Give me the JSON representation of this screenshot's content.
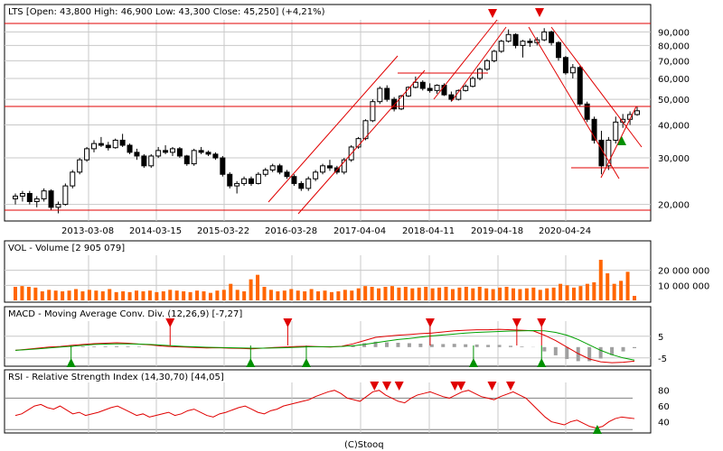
{
  "credit": "(C)Stooq",
  "colors": {
    "frame": "#000000",
    "grid": "#c8c8c8",
    "candle": "#000000",
    "trend": "#e00000",
    "volume": "#ff6600",
    "macd_line": "#e00000",
    "signal_line": "#00a000",
    "histogram": "#a0a0a0",
    "sell_marker": "#e00000",
    "buy_marker": "#009000",
    "rsi_line": "#e00000",
    "rsi_level": "#808080"
  },
  "chart_data": [
    {
      "type": "candlestick",
      "title": "LTS [Open: 43,800  High: 46,900  Low: 43,300  Close: 45,250] (+4,21%)",
      "scale": "log",
      "ylim": [
        18000,
        100000
      ],
      "y_ticks": [
        90000,
        80000,
        70000,
        60000,
        50000,
        40000,
        30000,
        20000
      ],
      "y_tick_labels": [
        "90,000",
        "80,000",
        "70,000",
        "60,000",
        "50,000",
        "40,000",
        "30,000",
        "20,000"
      ],
      "x_tick_labels": [
        "2013-03-08",
        "2014-03-15",
        "2015-03-22",
        "2016-03-28",
        "2017-04-04",
        "2018-04-11",
        "2019-04-18",
        "2020-04-24"
      ],
      "x_label_positions": [
        98,
        173,
        248,
        323,
        399,
        475,
        551,
        626
      ],
      "grid": true,
      "candles_approx": [
        [
          2012.2,
          21000,
          22000,
          20000,
          21500
        ],
        [
          2012.3,
          21500,
          22500,
          20500,
          22000
        ],
        [
          2012.4,
          22000,
          22500,
          20000,
          20500
        ],
        [
          2012.5,
          20500,
          21500,
          19500,
          21000
        ],
        [
          2012.6,
          21000,
          23000,
          20500,
          22500
        ],
        [
          2012.7,
          22500,
          22800,
          19000,
          19500
        ],
        [
          2012.8,
          19500,
          20500,
          18500,
          20000
        ],
        [
          2012.9,
          20000,
          24000,
          19800,
          23500
        ],
        [
          2013.0,
          23500,
          27000,
          23000,
          26500
        ],
        [
          2013.1,
          26500,
          30000,
          26000,
          29500
        ],
        [
          2013.2,
          29500,
          33000,
          29000,
          32500
        ],
        [
          2013.3,
          32500,
          35000,
          31500,
          34000
        ],
        [
          2013.4,
          34000,
          36000,
          33000,
          33500
        ],
        [
          2013.5,
          33500,
          34500,
          32000,
          32800
        ],
        [
          2013.6,
          32800,
          35500,
          32500,
          35000
        ],
        [
          2013.7,
          35000,
          37000,
          33000,
          33500
        ],
        [
          2013.8,
          33500,
          34000,
          31000,
          31500
        ],
        [
          2013.9,
          31500,
          32500,
          29500,
          30500
        ],
        [
          2014.0,
          30500,
          31000,
          27500,
          28000
        ],
        [
          2014.1,
          28000,
          31000,
          27500,
          30500
        ],
        [
          2014.2,
          30500,
          33000,
          30000,
          32000
        ],
        [
          2014.3,
          32000,
          33500,
          31000,
          31500
        ],
        [
          2014.4,
          31500,
          33000,
          30500,
          32500
        ],
        [
          2014.5,
          32500,
          33000,
          30000,
          30500
        ],
        [
          2014.6,
          30500,
          30800,
          28000,
          28500
        ],
        [
          2014.7,
          28500,
          32500,
          28000,
          32000
        ],
        [
          2014.8,
          32000,
          33000,
          31000,
          31500
        ],
        [
          2014.9,
          31500,
          32000,
          30500,
          31000
        ],
        [
          2015.0,
          31000,
          31500,
          29500,
          30000
        ],
        [
          2015.1,
          30000,
          30500,
          25500,
          26000
        ],
        [
          2015.2,
          26000,
          26500,
          23000,
          23500
        ],
        [
          2015.3,
          23500,
          24500,
          22000,
          24000
        ],
        [
          2015.4,
          24000,
          25500,
          23500,
          25000
        ],
        [
          2015.5,
          25000,
          25500,
          23500,
          24000
        ],
        [
          2015.6,
          24000,
          26500,
          23800,
          26000
        ],
        [
          2015.7,
          26000,
          27500,
          25500,
          27000
        ],
        [
          2015.8,
          27000,
          28500,
          26500,
          28000
        ],
        [
          2015.9,
          28000,
          28500,
          26000,
          26500
        ],
        [
          2016.0,
          26500,
          27000,
          25000,
          25500
        ],
        [
          2016.1,
          25500,
          26000,
          23500,
          24000
        ],
        [
          2016.2,
          24000,
          24500,
          22500,
          23000
        ],
        [
          2016.3,
          23000,
          25500,
          22500,
          25000
        ],
        [
          2016.4,
          25000,
          27000,
          24500,
          26500
        ],
        [
          2016.5,
          26500,
          28500,
          26000,
          28000
        ],
        [
          2016.6,
          28000,
          29500,
          26800,
          27500
        ],
        [
          2016.7,
          27500,
          28000,
          26000,
          26500
        ],
        [
          2016.8,
          26500,
          30000,
          26000,
          29500
        ],
        [
          2016.9,
          29500,
          33500,
          29000,
          33000
        ],
        [
          2017.0,
          33000,
          36000,
          32500,
          35500
        ],
        [
          2017.1,
          35500,
          42000,
          35000,
          41500
        ],
        [
          2017.2,
          41500,
          50000,
          41000,
          49000
        ],
        [
          2017.3,
          49000,
          56000,
          48000,
          55000
        ],
        [
          2017.4,
          55000,
          56500,
          49000,
          50000
        ],
        [
          2017.5,
          50000,
          51000,
          45000,
          46000
        ],
        [
          2017.6,
          46000,
          52000,
          45500,
          51500
        ],
        [
          2017.7,
          51500,
          56000,
          51000,
          55500
        ],
        [
          2017.8,
          55500,
          61000,
          55000,
          58000
        ],
        [
          2017.9,
          58000,
          59000,
          54000,
          55000
        ],
        [
          2018.0,
          55000,
          57500,
          53000,
          54000
        ],
        [
          2018.1,
          54000,
          57000,
          52500,
          56500
        ],
        [
          2018.2,
          56500,
          57500,
          51500,
          52000
        ],
        [
          2018.3,
          52000,
          53500,
          49000,
          50000
        ],
        [
          2018.4,
          50000,
          54500,
          49500,
          54000
        ],
        [
          2018.5,
          54000,
          57000,
          53500,
          56000
        ],
        [
          2018.6,
          56000,
          61000,
          55500,
          60000
        ],
        [
          2018.7,
          60000,
          66000,
          59000,
          65000
        ],
        [
          2018.8,
          65000,
          71000,
          64000,
          70000
        ],
        [
          2018.9,
          70000,
          77000,
          69000,
          76000
        ],
        [
          2019.0,
          76000,
          84000,
          75000,
          83000
        ],
        [
          2019.1,
          83000,
          92000,
          82000,
          88000
        ],
        [
          2019.2,
          88000,
          89000,
          78000,
          80000
        ],
        [
          2019.3,
          80000,
          84000,
          72000,
          83000
        ],
        [
          2019.4,
          83000,
          85000,
          79000,
          82000
        ],
        [
          2019.5,
          82000,
          86000,
          80000,
          84000
        ],
        [
          2019.6,
          84000,
          93000,
          83000,
          90000
        ],
        [
          2019.7,
          90000,
          91000,
          80000,
          82000
        ],
        [
          2019.8,
          82000,
          83000,
          70000,
          72000
        ],
        [
          2019.9,
          72000,
          73000,
          62000,
          63000
        ],
        [
          2020.0,
          63000,
          68000,
          60000,
          66000
        ],
        [
          2020.1,
          66000,
          67000,
          47000,
          48000
        ],
        [
          2020.2,
          48000,
          49000,
          41000,
          42000
        ],
        [
          2020.3,
          42000,
          43000,
          34000,
          35000
        ],
        [
          2020.4,
          35000,
          38000,
          26000,
          28000
        ],
        [
          2020.5,
          28000,
          36000,
          27000,
          35000
        ],
        [
          2020.6,
          35000,
          43000,
          34000,
          41000
        ],
        [
          2020.7,
          41000,
          44000,
          39000,
          42000
        ],
        [
          2020.8,
          42000,
          45000,
          40000,
          43800
        ],
        [
          2020.9,
          43800,
          46900,
          43300,
          45250
        ]
      ]
    },
    {
      "type": "bar",
      "title": "VOL - Volume [2 905 079]",
      "y_ticks": [
        20000000,
        10000000
      ],
      "y_tick_labels": [
        "20 000 000",
        "10 000 000"
      ],
      "ylim": [
        0,
        30000000
      ],
      "values": [
        9000000,
        9500000,
        9000000,
        8500000,
        6000000,
        7000000,
        6500000,
        6000000,
        6500000,
        7500000,
        6000000,
        7000000,
        6500000,
        6000000,
        7500000,
        5500000,
        6000000,
        5500000,
        6500000,
        6000000,
        6500000,
        5500000,
        6000000,
        7000000,
        6500000,
        6000000,
        5500000,
        6500000,
        6000000,
        5000000,
        6500000,
        7000000,
        11000000,
        7000000,
        6000000,
        14000000,
        17000000,
        9000000,
        7000000,
        6000000,
        6500000,
        7500000,
        6500000,
        6000000,
        7500000,
        6000000,
        6500000,
        5500000,
        6000000,
        7000000,
        6500000,
        8000000,
        9500000,
        9000000,
        8000000,
        9000000,
        9500000,
        8500000,
        9000000,
        8000000,
        8500000,
        9000000,
        8000000,
        8500000,
        9000000,
        7500000,
        8500000,
        9000000,
        8000000,
        9000000,
        8000000,
        7500000,
        8500000,
        9000000,
        8000000,
        7500000,
        8000000,
        8500000,
        7000000,
        8000000,
        8500000,
        11000000,
        10000000,
        8500000,
        9500000,
        11000000,
        12000000,
        27000000,
        18000000,
        11000000,
        13000000,
        19000000,
        3000000
      ]
    },
    {
      "type": "line",
      "title": "MACD - Moving Average Conv. Div. (12,26,9) [-7,27]",
      "y_ticks": [
        5,
        -5
      ],
      "y_tick_labels": [
        "5",
        "-5"
      ],
      "ylim": [
        -8,
        12
      ],
      "series": [
        {
          "values": [
            -1.5,
            -1.0,
            -0.5,
            0.0,
            0.3,
            0.8,
            1.2,
            1.6,
            1.8,
            2.0,
            1.8,
            1.4,
            1.0,
            0.5,
            0.2,
            0.0,
            -0.2,
            -0.4,
            -0.3,
            -0.5,
            -0.6,
            -0.8,
            -0.5,
            -0.2,
            0.0,
            0.3,
            0.4,
            0.2,
            0.0,
            0.4,
            1.5,
            3.0,
            4.5,
            5.0,
            5.5,
            5.8,
            6.2,
            6.5,
            7.0,
            7.5,
            7.8,
            8.0,
            8.0,
            8.2,
            8.0,
            7.8,
            7.5,
            5.5,
            3.0,
            0.0,
            -3.0,
            -5.5,
            -6.8,
            -7.2,
            -7.0,
            -6.5
          ]
        },
        {
          "values": [
            -1.5,
            -1.2,
            -0.8,
            -0.4,
            0.0,
            0.4,
            0.8,
            1.2,
            1.4,
            1.5,
            1.5,
            1.4,
            1.2,
            0.9,
            0.6,
            0.3,
            0.1,
            -0.1,
            -0.2,
            -0.3,
            -0.4,
            -0.5,
            -0.5,
            -0.4,
            -0.3,
            -0.1,
            0.1,
            0.2,
            0.2,
            0.3,
            0.6,
            1.2,
            2.0,
            2.8,
            3.5,
            4.0,
            4.6,
            5.2,
            5.6,
            6.0,
            6.5,
            6.8,
            7.0,
            7.2,
            7.4,
            7.5,
            7.6,
            7.5,
            6.8,
            5.5,
            3.5,
            1.0,
            -1.5,
            -3.5,
            -5.0,
            -6.0
          ]
        }
      ],
      "histogram": [
        0,
        0,
        0,
        0,
        0,
        0.2,
        0.3,
        0.3,
        0.3,
        0.4,
        0.3,
        0.2,
        0,
        0,
        0,
        0,
        0,
        0,
        0,
        0,
        0,
        0,
        0,
        0,
        0,
        0,
        0,
        0,
        0,
        0,
        0.9,
        1.8,
        2.5,
        2.2,
        2.0,
        1.8,
        1.6,
        1.3,
        1.4,
        1.5,
        1.3,
        1.2,
        1.0,
        1.0,
        0.6,
        0.3,
        -0.1,
        -2.0,
        -3.8,
        -5.5,
        -6.5,
        -6.5,
        -5.3,
        -3.7,
        -2.0,
        -0.5
      ],
      "sell_signals_at": [
        0.25,
        0.44,
        0.67,
        0.81,
        0.85
      ],
      "buy_signals_at": [
        0.09,
        0.38,
        0.47,
        0.74,
        0.85
      ]
    },
    {
      "type": "line",
      "title": "RSI - Relative Strength Index (14,30,70) [44,05]",
      "y_ticks": [
        80,
        60,
        40
      ],
      "y_tick_labels": [
        "80",
        "60",
        "40"
      ],
      "ylim": [
        28,
        90
      ],
      "levels": [
        30,
        70
      ],
      "values": [
        48,
        50,
        55,
        60,
        62,
        58,
        56,
        60,
        55,
        50,
        52,
        48,
        50,
        52,
        55,
        58,
        60,
        56,
        52,
        48,
        50,
        46,
        48,
        50,
        52,
        48,
        50,
        54,
        56,
        52,
        48,
        46,
        50,
        52,
        55,
        58,
        60,
        56,
        52,
        50,
        54,
        56,
        60,
        62,
        64,
        66,
        68,
        72,
        75,
        78,
        80,
        76,
        70,
        68,
        66,
        72,
        78,
        80,
        74,
        70,
        66,
        64,
        70,
        74,
        76,
        78,
        75,
        72,
        70,
        74,
        78,
        80,
        76,
        72,
        70,
        68,
        72,
        75,
        78,
        74,
        70,
        62,
        54,
        46,
        40,
        38,
        36,
        40,
        42,
        38,
        34,
        32,
        34,
        40,
        44,
        46,
        45,
        44
      ],
      "sell_signals_at": [
        0.58,
        0.6,
        0.62,
        0.71,
        0.72,
        0.77,
        0.8
      ],
      "buy_signals_at": [
        0.94
      ]
    }
  ]
}
